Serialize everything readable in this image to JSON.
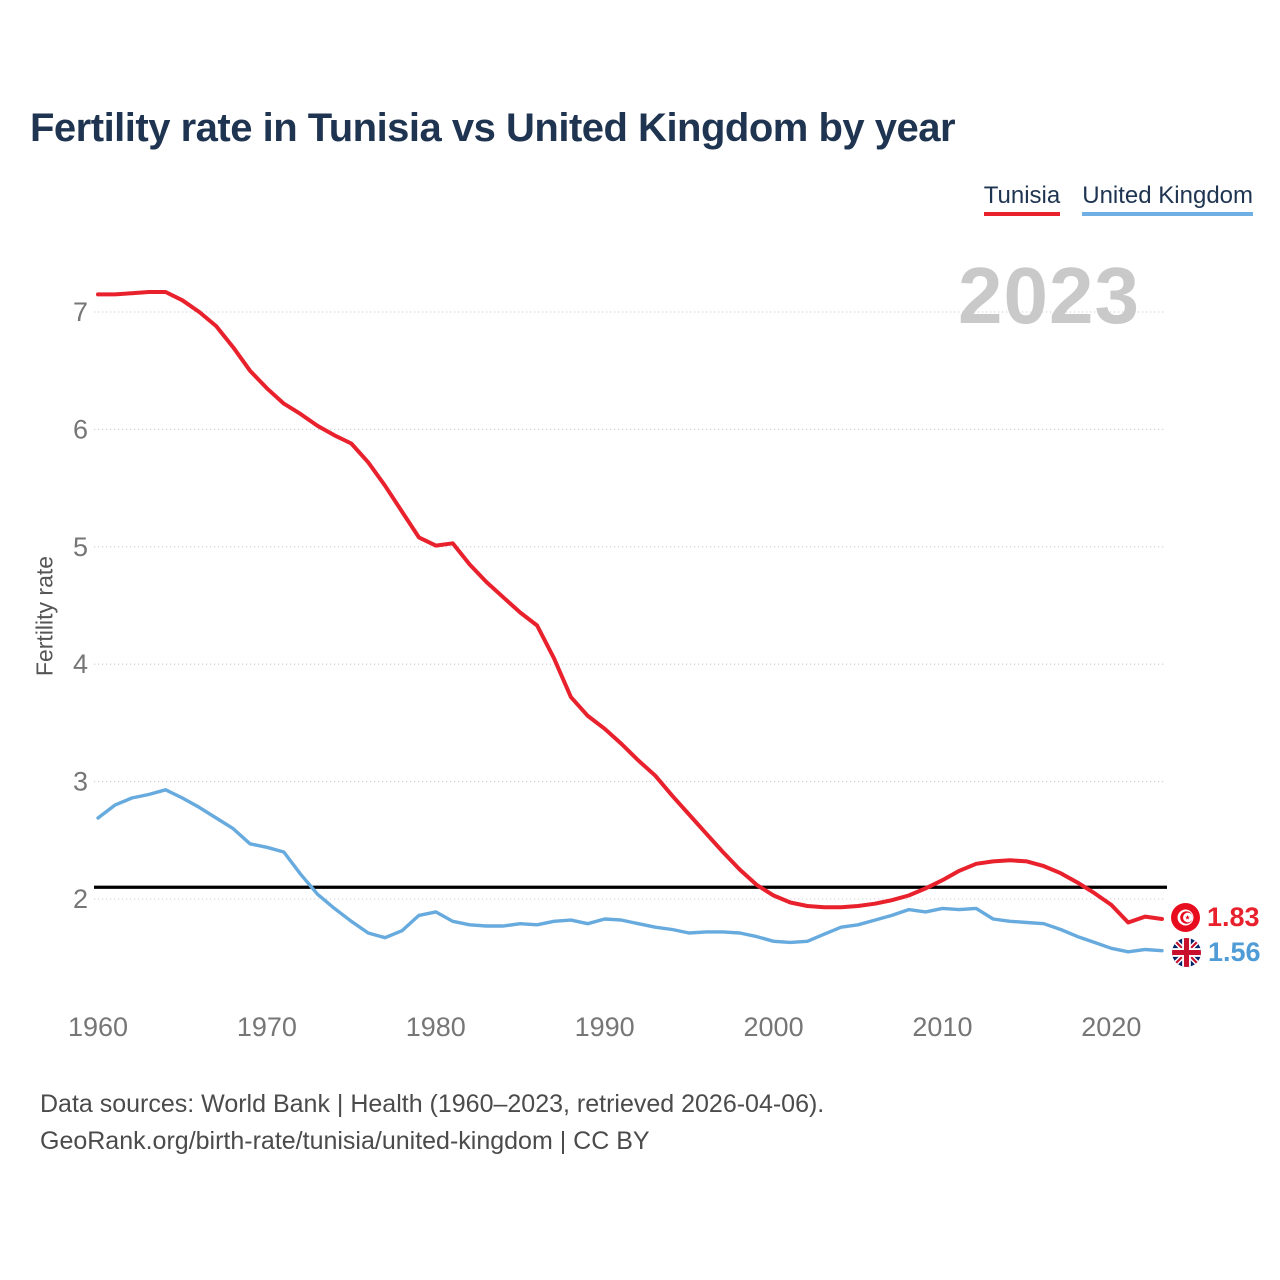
{
  "header": {
    "title": "Fertility rate in Tunisia vs United Kingdom by year"
  },
  "legend": {
    "items": [
      {
        "label": "Tunisia",
        "color": "#e8212c"
      },
      {
        "label": "United Kingdom",
        "color": "#6fafe4"
      }
    ]
  },
  "watermark": "2023",
  "end_labels": {
    "tunisia": {
      "value": "1.83",
      "flag": "tunisia-flag"
    },
    "uk": {
      "value": "1.56",
      "flag": "uk-flag"
    }
  },
  "footer": {
    "line1": "Data sources: World Bank | Health (1960–2023, retrieved 2026-04-06).",
    "line2": "GeoRank.org/birth-rate/tunisia/united-kingdom | CC BY"
  },
  "chart_data": {
    "type": "line",
    "title": "Fertility rate in Tunisia vs United Kingdom by year",
    "xlabel": "",
    "ylabel": "Fertility rate",
    "x_range": [
      1960,
      2023
    ],
    "ylim": [
      1.4,
      7.4
    ],
    "y_ticks": [
      2,
      3,
      4,
      5,
      6,
      7
    ],
    "x_ticks": [
      1960,
      1970,
      1980,
      1990,
      2000,
      2010,
      2020
    ],
    "grid": "horizontal",
    "legend_position": "top-right",
    "tick_color": "#767676",
    "grid_color": "#cccccc",
    "reference_line": {
      "value": 2.1,
      "color": "#000000"
    },
    "x": [
      1960,
      1961,
      1962,
      1963,
      1964,
      1965,
      1966,
      1967,
      1968,
      1969,
      1970,
      1971,
      1972,
      1973,
      1974,
      1975,
      1976,
      1977,
      1978,
      1979,
      1980,
      1981,
      1982,
      1983,
      1984,
      1985,
      1986,
      1987,
      1988,
      1989,
      1990,
      1991,
      1992,
      1993,
      1994,
      1995,
      1996,
      1997,
      1998,
      1999,
      2000,
      2001,
      2002,
      2003,
      2004,
      2005,
      2006,
      2007,
      2008,
      2009,
      2010,
      2011,
      2012,
      2013,
      2014,
      2015,
      2016,
      2017,
      2018,
      2019,
      2020,
      2021,
      2022,
      2023
    ],
    "series": [
      {
        "name": "Tunisia",
        "color": "#e8212c",
        "width": 4,
        "last_value": 1.83,
        "values": [
          7.15,
          7.15,
          7.16,
          7.17,
          7.17,
          7.1,
          7.0,
          6.88,
          6.7,
          6.5,
          6.35,
          6.22,
          6.13,
          6.03,
          5.95,
          5.88,
          5.72,
          5.52,
          5.3,
          5.08,
          5.01,
          5.03,
          4.85,
          4.7,
          4.57,
          4.44,
          4.33,
          4.05,
          3.72,
          3.56,
          3.45,
          3.32,
          3.18,
          3.05,
          2.88,
          2.72,
          2.56,
          2.4,
          2.25,
          2.12,
          2.03,
          1.97,
          1.94,
          1.93,
          1.93,
          1.94,
          1.96,
          1.99,
          2.03,
          2.09,
          2.16,
          2.24,
          2.3,
          2.32,
          2.33,
          2.32,
          2.28,
          2.22,
          2.14,
          2.05,
          1.95,
          1.8,
          1.85,
          1.83
        ]
      },
      {
        "name": "United Kingdom",
        "color": "#67aade",
        "width": 3.4,
        "last_value": 1.56,
        "values": [
          2.69,
          2.8,
          2.86,
          2.89,
          2.93,
          2.86,
          2.78,
          2.69,
          2.6,
          2.47,
          2.44,
          2.4,
          2.21,
          2.04,
          1.92,
          1.81,
          1.71,
          1.67,
          1.73,
          1.86,
          1.89,
          1.81,
          1.78,
          1.77,
          1.77,
          1.79,
          1.78,
          1.81,
          1.82,
          1.79,
          1.83,
          1.82,
          1.79,
          1.76,
          1.74,
          1.71,
          1.72,
          1.72,
          1.71,
          1.68,
          1.64,
          1.63,
          1.64,
          1.7,
          1.76,
          1.78,
          1.82,
          1.86,
          1.91,
          1.89,
          1.92,
          1.91,
          1.92,
          1.83,
          1.81,
          1.8,
          1.79,
          1.74,
          1.68,
          1.63,
          1.58,
          1.55,
          1.57,
          1.56
        ]
      }
    ]
  }
}
